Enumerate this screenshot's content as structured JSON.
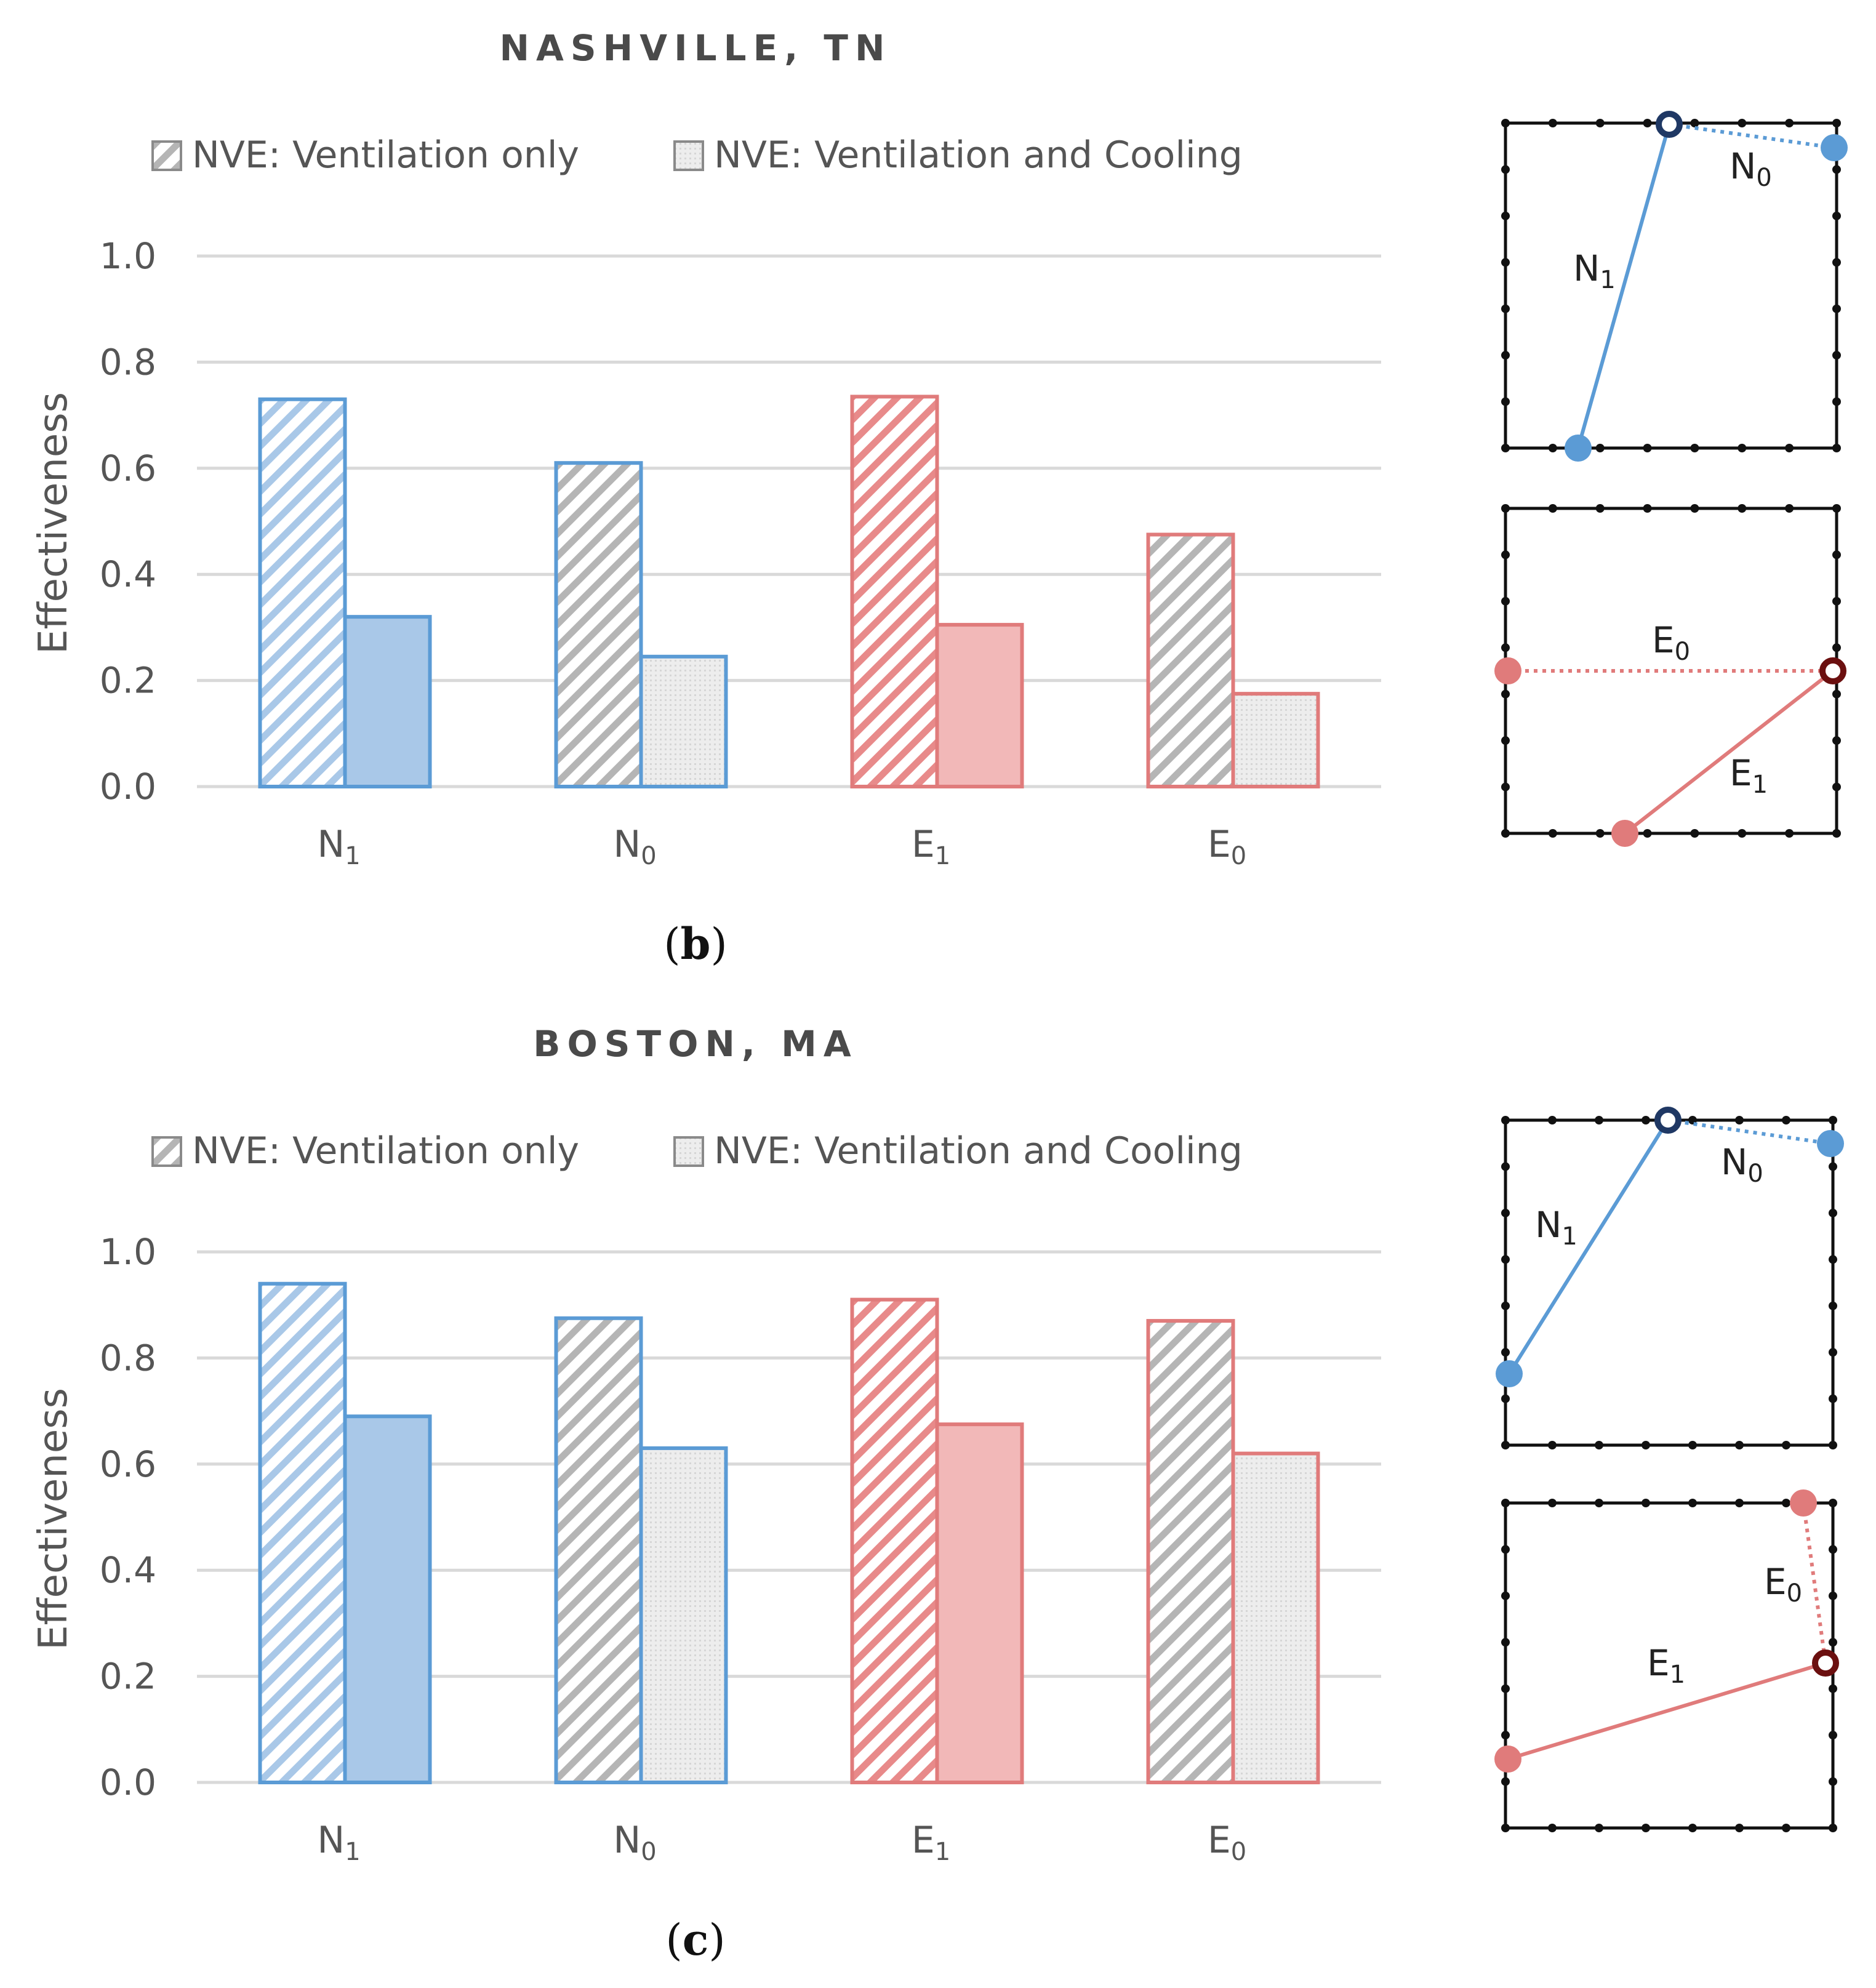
{
  "chart_data": [
    {
      "type": "bar",
      "panel": "b",
      "title": "NASHVILLE, TN",
      "ylabel": "Effectiveness",
      "xlabel": "",
      "ylim": [
        0,
        1.0
      ],
      "yticks": [
        "0.0",
        "0.2",
        "0.4",
        "0.6",
        "0.8",
        "1.0"
      ],
      "grid": true,
      "legend_position": "top",
      "categories": [
        {
          "base": "N",
          "sub": "1"
        },
        {
          "base": "N",
          "sub": "0"
        },
        {
          "base": "E",
          "sub": "1"
        },
        {
          "base": "E",
          "sub": "0"
        }
      ],
      "series": [
        {
          "name": "NVE: Ventilation only",
          "values": [
            0.73,
            0.61,
            0.735,
            0.475
          ]
        },
        {
          "name": "NVE: Ventilation and Cooling",
          "values": [
            0.32,
            0.245,
            0.305,
            0.175
          ]
        }
      ],
      "caption_letter": "b",
      "caption": "(b)"
    },
    {
      "type": "bar",
      "panel": "c",
      "title": "BOSTON, MA",
      "ylabel": "Effectiveness",
      "xlabel": "",
      "ylim": [
        0,
        1.0
      ],
      "yticks": [
        "0.0",
        "0.2",
        "0.4",
        "0.6",
        "0.8",
        "1.0"
      ],
      "grid": true,
      "legend_position": "top",
      "categories": [
        {
          "base": "N",
          "sub": "1"
        },
        {
          "base": "N",
          "sub": "0"
        },
        {
          "base": "E",
          "sub": "1"
        },
        {
          "base": "E",
          "sub": "0"
        }
      ],
      "series": [
        {
          "name": "NVE: Ventilation only",
          "values": [
            0.94,
            0.875,
            0.91,
            0.87
          ]
        },
        {
          "name": "NVE: Ventilation and Cooling",
          "values": [
            0.69,
            0.63,
            0.675,
            0.62
          ]
        }
      ],
      "caption_letter": "c",
      "caption": "(c)"
    }
  ],
  "colors": {
    "N1": "#5b9bd5",
    "N1_fill": "#a9c8e8",
    "N0_edge": "#5b9bd5",
    "E1": "#e07b7b",
    "E1_fill": "#f2b8b8",
    "E0_edge": "#e07b7b",
    "gray": "#b0b0b0",
    "gray_fill": "#e9e9e9",
    "navy": "#1f3864",
    "darkred": "#6b0f0f",
    "grid": "#d9d9d9",
    "text": "#555555"
  },
  "diagrams": [
    {
      "panel": "b",
      "top_labels": {
        "n0": {
          "base": "N",
          "sub": "0"
        },
        "n1": {
          "base": "N",
          "sub": "1"
        }
      },
      "bottom_labels": {
        "e0": {
          "base": "E",
          "sub": "0"
        },
        "e1": {
          "base": "E",
          "sub": "1"
        }
      }
    },
    {
      "panel": "c",
      "top_labels": {
        "n0": {
          "base": "N",
          "sub": "0"
        },
        "n1": {
          "base": "N",
          "sub": "1"
        }
      },
      "bottom_labels": {
        "e0": {
          "base": "E",
          "sub": "0"
        },
        "e1": {
          "base": "E",
          "sub": "1"
        }
      }
    }
  ]
}
